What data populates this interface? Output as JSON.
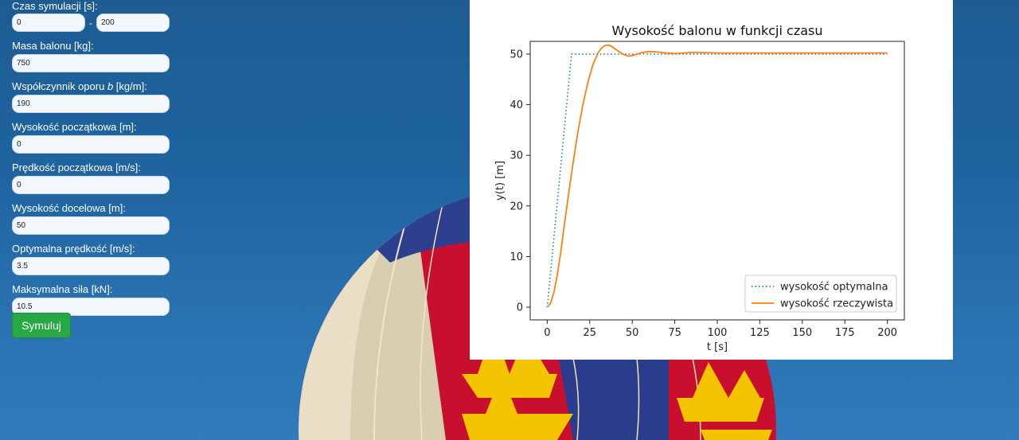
{
  "form": {
    "sim_time_label": "Czas symulacji [s]:",
    "sim_time_start": "0",
    "sim_time_sep": "-",
    "sim_time_end": "200",
    "mass_label": "Masa balonu [kg]:",
    "mass_value": "750",
    "drag_label_pre": "Współczynnik oporu ",
    "drag_label_var": "b",
    "drag_label_post": " [kg/m]:",
    "drag_value": "190",
    "h0_label": "Wysokość początkowa [m]:",
    "h0_value": "0",
    "v0_label": "Prędkość początkowa [m/s]:",
    "v0_value": "0",
    "target_label": "Wysokość docelowa [m]:",
    "target_value": "50",
    "opt_speed_label": "Optymalna prędkość [m/s]:",
    "opt_speed_value": "3.5",
    "max_force_label": "Maksymalna siła [kN]:",
    "max_force_value": "10.5",
    "submit_label": "Symuluj"
  },
  "colors": {
    "optimal": "#1f77b4",
    "actual": "#ff7f0e",
    "button": "#28a745"
  },
  "chart_data": {
    "type": "line",
    "title": "Wysokość balonu w funkcji czasu",
    "xlabel": "t [s]",
    "ylabel": "y(t) [m]",
    "xlim": [
      -10,
      210
    ],
    "ylim": [
      -2.5,
      52.5
    ],
    "xticks": [
      0,
      25,
      50,
      75,
      100,
      125,
      150,
      175,
      200
    ],
    "yticks": [
      0,
      10,
      20,
      30,
      40,
      50
    ],
    "legend_position": "lower-right",
    "series": [
      {
        "name": "wysokość optymalna",
        "style": "dotted",
        "x": [
          0,
          14.3,
          200
        ],
        "y": [
          0,
          50,
          50
        ]
      },
      {
        "name": "wysokość rzeczywista",
        "style": "solid",
        "x": [
          0,
          2,
          4,
          6,
          8,
          10,
          12,
          15,
          18,
          21,
          24,
          27,
          30,
          32,
          34,
          36,
          38,
          40,
          42,
          45,
          48,
          50,
          53,
          56,
          60,
          65,
          70,
          75,
          80,
          85,
          90,
          100,
          120,
          150,
          200
        ],
        "y": [
          0,
          0.8,
          3,
          6.5,
          11,
          16,
          21,
          28,
          34.5,
          40,
          44.5,
          48,
          50.3,
          51.2,
          51.7,
          51.8,
          51.5,
          51,
          50.5,
          49.9,
          49.6,
          49.7,
          50,
          50.3,
          50.5,
          50.4,
          50.2,
          50.1,
          50.2,
          50.3,
          50.3,
          50.2,
          50.2,
          50.2,
          50.2
        ]
      }
    ]
  }
}
